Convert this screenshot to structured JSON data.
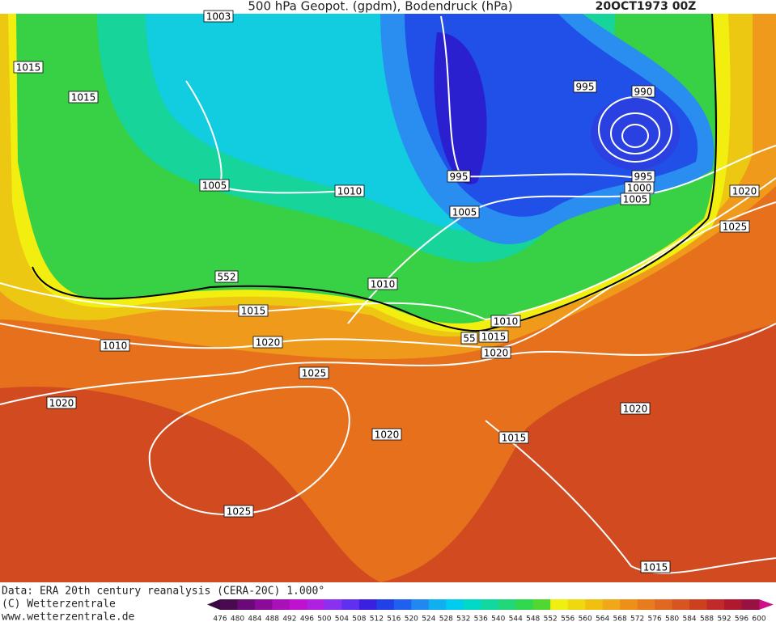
{
  "header": {
    "title": "500 hPa Geopot. (gpdm), Bodendruck (hPa)",
    "date": "20OCT1973 00Z"
  },
  "map": {
    "contour_labels": [
      1003,
      1015,
      1015,
      1005,
      1010,
      995,
      1005,
      995,
      990,
      995,
      1000,
      1005,
      1020,
      1025,
      552,
      1010,
      1015,
      1010,
      1020,
      1025,
      1020,
      1010,
      55,
      1015,
      1020,
      1020,
      1015,
      1020,
      1025,
      1015
    ]
  },
  "footer": {
    "source": "Data: ERA 20th century reanalysis (CERA-20C) 1.000°",
    "copyright": "(C) Wetterzentrale",
    "url": "www.wetterzentrale.de"
  },
  "colorbar": {
    "labels": [
      476,
      480,
      484,
      488,
      492,
      496,
      500,
      504,
      508,
      512,
      516,
      520,
      524,
      528,
      532,
      536,
      540,
      544,
      548,
      552,
      556,
      560,
      564,
      568,
      572,
      576,
      580,
      584,
      588,
      592,
      596,
      600
    ]
  }
}
